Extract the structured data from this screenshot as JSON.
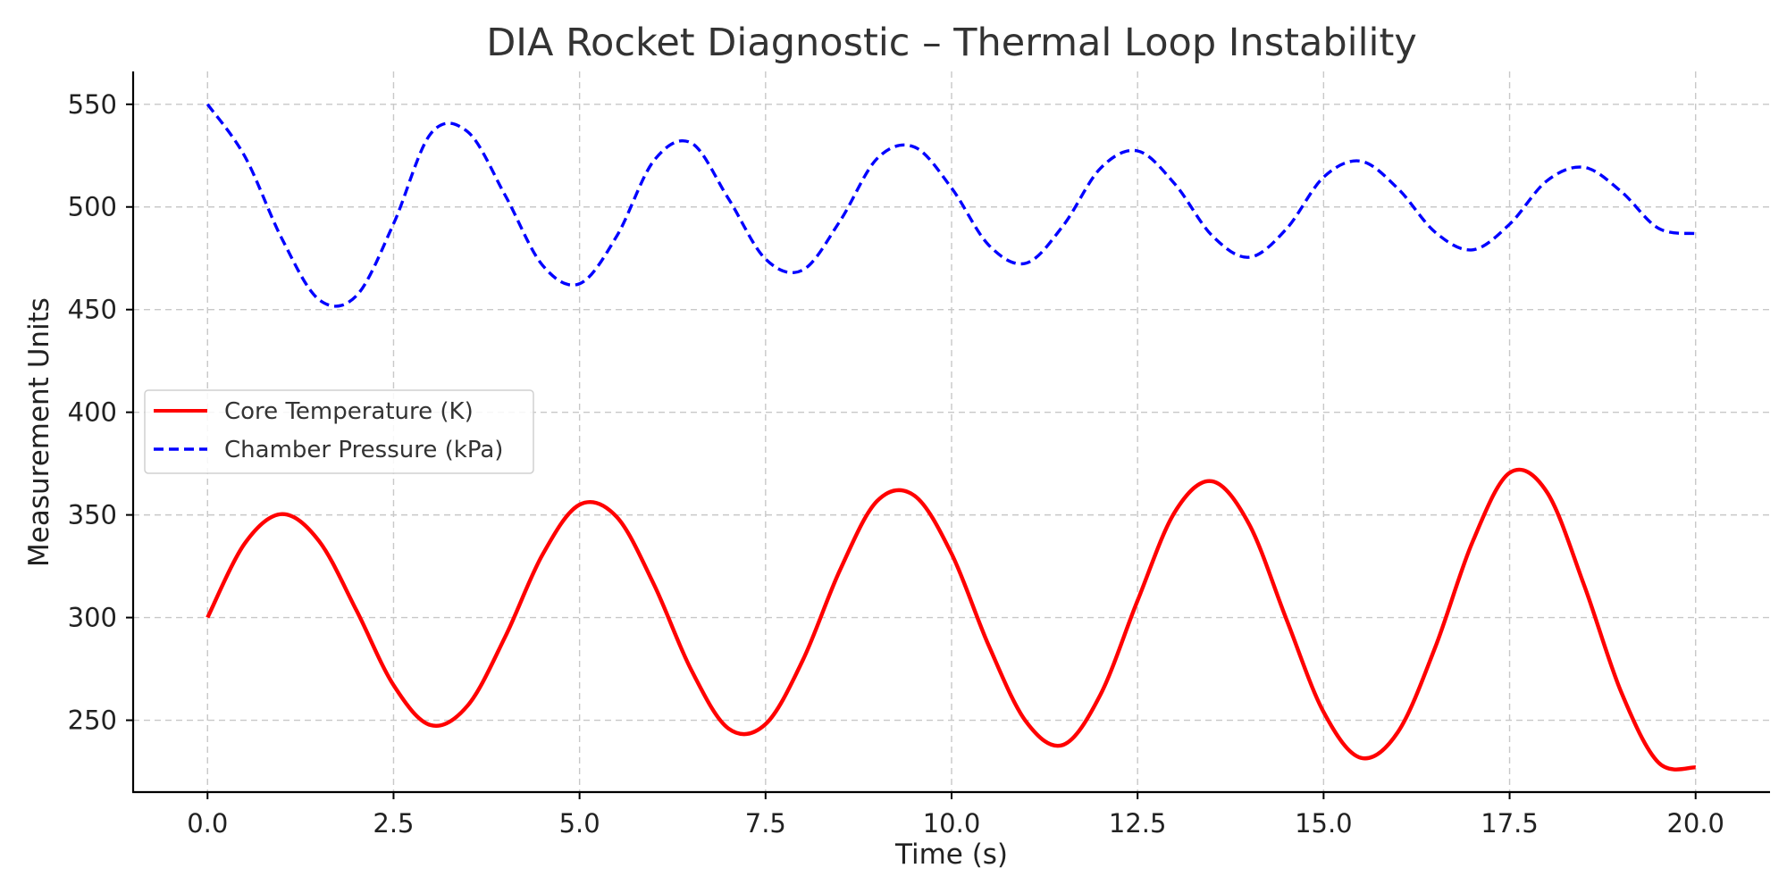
{
  "chart_data": {
    "type": "line",
    "title": "DIA Rocket Diagnostic – Thermal Loop Instability",
    "xlabel": "Time (s)",
    "ylabel": "Measurement Units",
    "xlim": [
      -1.0,
      21.0
    ],
    "ylim": [
      215,
      566
    ],
    "x_ticks": [
      0.0,
      2.5,
      5.0,
      7.5,
      10.0,
      12.5,
      15.0,
      17.5,
      20.0
    ],
    "x_tick_labels": [
      "0.0",
      "2.5",
      "5.0",
      "7.5",
      "10.0",
      "12.5",
      "15.0",
      "17.5",
      "20.0"
    ],
    "y_ticks": [
      250,
      300,
      350,
      400,
      450,
      500,
      550
    ],
    "y_tick_labels": [
      "250",
      "300",
      "350",
      "400",
      "450",
      "500",
      "550"
    ],
    "grid": true,
    "legend_position": "center-left",
    "x": [
      0.0,
      0.5,
      1.0,
      1.5,
      2.0,
      2.5,
      3.0,
      3.5,
      4.0,
      4.5,
      5.0,
      5.5,
      6.0,
      6.5,
      7.0,
      7.5,
      8.0,
      8.5,
      9.0,
      9.5,
      10.0,
      10.5,
      11.0,
      11.5,
      12.0,
      12.5,
      13.0,
      13.5,
      14.0,
      14.5,
      15.0,
      15.5,
      16.0,
      16.5,
      17.0,
      17.5,
      18.0,
      18.5,
      19.0,
      19.5,
      20.0
    ],
    "series": [
      {
        "name": "Core Temperature (K)",
        "color": "#ff0000",
        "style": "solid",
        "values": [
          300.0,
          336.1,
          350.4,
          337.2,
          303.6,
          267.1,
          247.6,
          257.3,
          290.6,
          330.5,
          355.0,
          349.0,
          316.1,
          274.6,
          246.0,
          248.1,
          279.2,
          323.1,
          356.8,
          359.4,
          331.1,
          286.3,
          249.4,
          238.0,
          262.4,
          308.3,
          351.4,
          366.4,
          345.4,
          299.2,
          254.0,
          231.7,
          244.3,
          285.5,
          336.7,
          370.5,
          361.2,
          315.9,
          263.7,
          229.4,
          227.0
        ]
      },
      {
        "name": "Chamber Pressure (kPa)",
        "color": "#0000ff",
        "style": "dashed",
        "values": [
          550.0,
          524.7,
          484.5,
          454.8,
          456.7,
          491.8,
          535.7,
          536.5,
          505.7,
          471.7,
          462.6,
          485.8,
          522.6,
          531.2,
          504.1,
          474.6,
          469.3,
          493.1,
          523.6,
          529.2,
          509.2,
          481.4,
          472.6,
          490.9,
          518.8,
          527.3,
          511.2,
          486.1,
          475.5,
          489.3,
          514.5,
          522.3,
          508.9,
          487.7,
          479.1,
          491.6,
          512.7,
          519.3,
          507.5,
          489.6,
          487.0
        ]
      }
    ]
  }
}
